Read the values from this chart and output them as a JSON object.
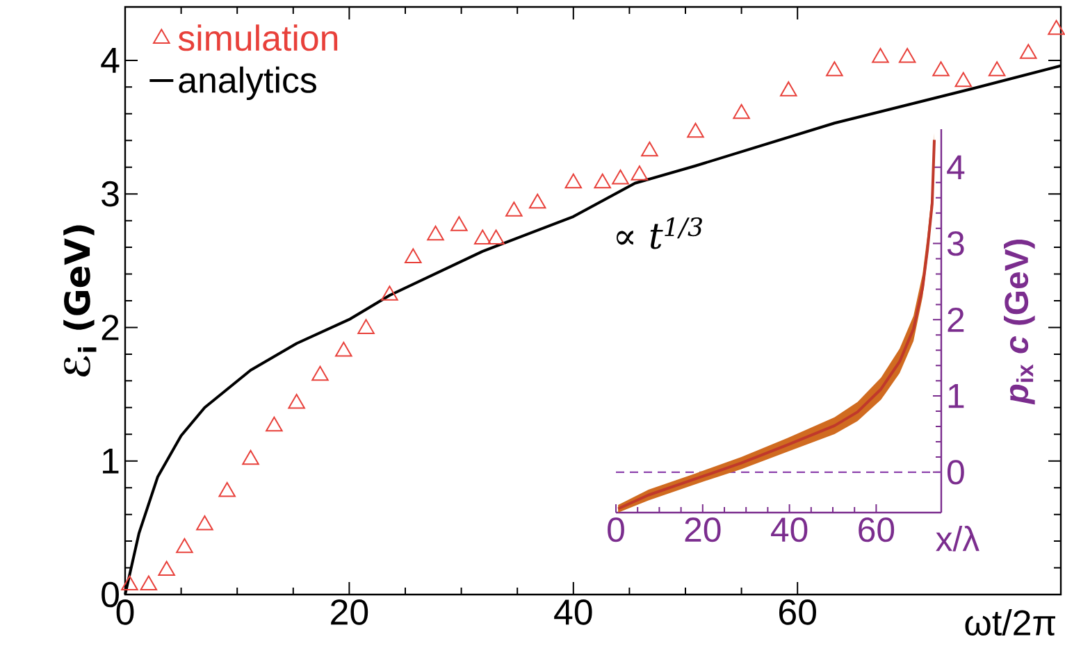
{
  "chart_data": [
    {
      "type": "line",
      "xlabel": "ωt/2π",
      "ylabel": "ℰ$_{i}$ (GeV)",
      "xlim": [
        0,
        83.5
      ],
      "ylim": [
        0,
        4.4
      ],
      "xticks": [
        0,
        20,
        40,
        60
      ],
      "yticks": [
        0,
        1,
        2,
        3,
        4
      ],
      "legend": "top left",
      "annotations": [
        "∝ t$^{1/3}$"
      ],
      "series": [
        {
          "name": "simulation",
          "type": "scatter",
          "marker": "triangle",
          "color": "#e8403a",
          "x": [
            0.4,
            2.1,
            3.7,
            5.3,
            7.1,
            9.1,
            11.2,
            13.3,
            15.3,
            17.4,
            19.5,
            21.5,
            23.6,
            25.7,
            27.7,
            29.8,
            31.9,
            33.1,
            34.7,
            36.8,
            40,
            42.6,
            44.2,
            45.9,
            46.8,
            50.9,
            55,
            59.2,
            63.3,
            67.4,
            69.8,
            72.8,
            74.8,
            77.8,
            80.6,
            83.1
          ],
          "values": [
            0.07,
            0.07,
            0.18,
            0.35,
            0.52,
            0.77,
            1.01,
            1.26,
            1.43,
            1.64,
            1.82,
            1.99,
            2.24,
            2.52,
            2.69,
            2.76,
            2.66,
            2.66,
            2.87,
            2.93,
            3.08,
            3.08,
            3.11,
            3.14,
            3.32,
            3.46,
            3.6,
            3.77,
            3.92,
            4.02,
            4.02,
            3.92,
            3.84,
            3.92,
            4.05,
            4.23
          ]
        },
        {
          "name": "analytics",
          "type": "line",
          "color": "#000000",
          "x": [
            0,
            1.24,
            2.9,
            5,
            7.1,
            11.2,
            15.3,
            20,
            23.6,
            31.9,
            40,
            45.5,
            50.9,
            63.3,
            75.7,
            83.5
          ],
          "values": [
            0,
            0.46,
            0.88,
            1.19,
            1.4,
            1.68,
            1.88,
            2.06,
            2.24,
            2.57,
            2.83,
            3.08,
            3.21,
            3.53,
            3.79,
            3.96
          ]
        }
      ]
    },
    {
      "type": "line",
      "xlabel": "x/λ",
      "ylabel": "*p*$_{ix}$ *c* (GeV)",
      "xlim": [
        0,
        75
      ],
      "ylim": [
        -0.53,
        4.5
      ],
      "xticks": [
        0,
        20,
        40,
        60
      ],
      "yticks": [
        0,
        1,
        2,
        3,
        4
      ],
      "ref_lines": [
        {
          "axis": "y",
          "value": 0,
          "color": "#8e44ad",
          "line_style": "dashed"
        }
      ],
      "series": [
        {
          "color": "#c0392b",
          "x": [
            0.5,
            7.5,
            18.2,
            28.9,
            39.6,
            50.4,
            55.7,
            61.1,
            65.4,
            68.6,
            70.7,
            71.8,
            72.9,
            73.4
          ],
          "values": [
            -0.48,
            -0.3,
            -0.09,
            0.12,
            0.36,
            0.61,
            0.79,
            1.09,
            1.45,
            1.88,
            2.42,
            2.91,
            3.52,
            4.36
          ],
          "lower": [
            -0.53,
            -0.37,
            -0.16,
            0.04,
            0.27,
            0.5,
            0.67,
            0.95,
            1.3,
            1.72,
            2.3,
            2.8,
            3.4,
            4.3
          ],
          "upper": [
            -0.43,
            -0.23,
            -0.02,
            0.2,
            0.45,
            0.72,
            0.92,
            1.24,
            1.62,
            2.05,
            2.6,
            3.1,
            3.7,
            4.45
          ]
        }
      ]
    }
  ]
}
